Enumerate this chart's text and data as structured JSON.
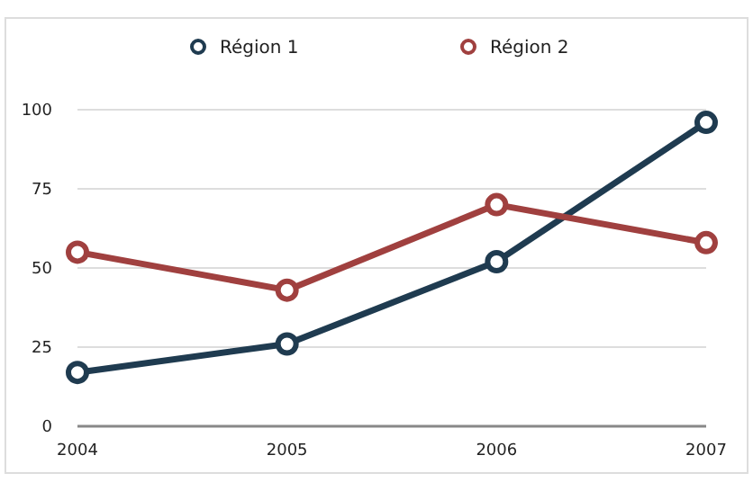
{
  "chart_data": {
    "type": "line",
    "x": [
      2004,
      2005,
      2006,
      2007
    ],
    "xlim": [
      2004,
      2007
    ],
    "xticks": [
      2004,
      2005,
      2006,
      2007
    ],
    "ylim": [
      0,
      100
    ],
    "yticks": [
      0,
      25,
      50,
      75,
      100
    ],
    "grid": "y",
    "legend": "top",
    "marker": "circle",
    "series": [
      {
        "name": "Région 1",
        "color": "#1f3b50",
        "values": [
          17,
          26,
          52,
          96
        ]
      },
      {
        "name": "Région 2",
        "color": "#a0403f",
        "values": [
          55,
          43,
          70,
          58
        ]
      }
    ]
  }
}
